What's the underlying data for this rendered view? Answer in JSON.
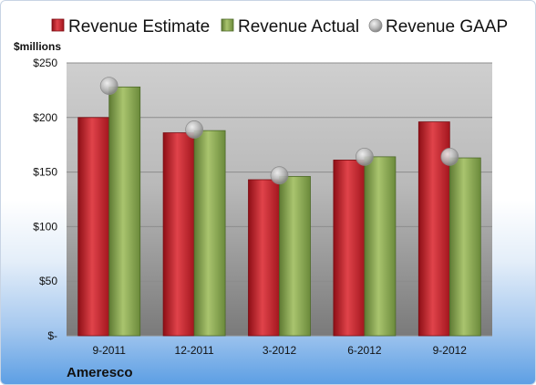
{
  "company": "Ameresco",
  "chart_data": {
    "type": "bar",
    "title": "",
    "ylabel": "$millions",
    "xlabel": "",
    "categories": [
      "9-2011",
      "12-2011",
      "3-2012",
      "6-2012",
      "9-2012"
    ],
    "series": [
      {
        "name": "Revenue Estimate",
        "kind": "bar",
        "color": "#c8202a",
        "values": [
          200,
          186,
          143,
          161,
          196
        ]
      },
      {
        "name": "Revenue Actual",
        "kind": "bar",
        "color": "#8aa854",
        "values": [
          228,
          188,
          146,
          164,
          163
        ]
      },
      {
        "name": "Revenue GAAP",
        "kind": "marker",
        "color": "#a6a6a6",
        "values": [
          229,
          189,
          147,
          164,
          164
        ]
      }
    ],
    "ylim": [
      0,
      250
    ],
    "yticks": [
      0,
      50,
      100,
      150,
      200,
      250
    ],
    "ytick_labels": [
      "$-",
      "$50",
      "$100",
      "$150",
      "$200",
      "$250"
    ],
    "grid": true,
    "legend_position": "top"
  }
}
